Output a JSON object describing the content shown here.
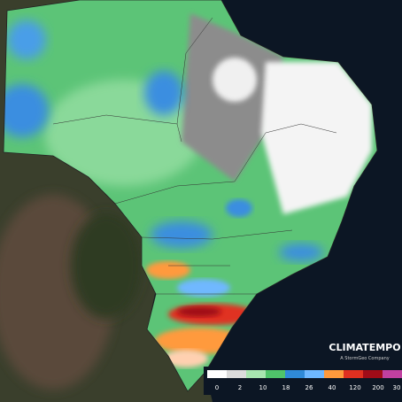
{
  "logo": {
    "name": "CLIMATEMPO",
    "tagline": "A StormGeo Company"
  },
  "legend": {
    "colors": [
      "#ffffff",
      "#dcdcdc",
      "#a8e6b0",
      "#4fc46a",
      "#2f8ad8",
      "#6fb8ff",
      "#ff9a3c",
      "#e03020",
      "#a00c18",
      "#c040a0"
    ],
    "labels": [
      "0",
      "2",
      "10",
      "18",
      "26",
      "40",
      "120",
      "200",
      "30"
    ]
  }
}
